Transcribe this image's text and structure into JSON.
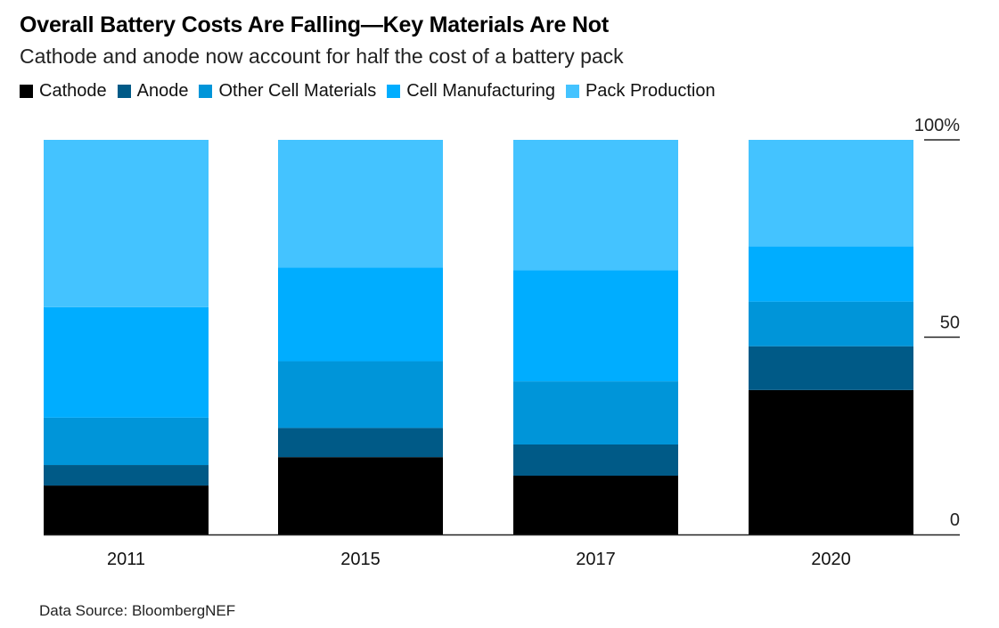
{
  "chart_data": {
    "type": "bar",
    "stacked": true,
    "title": "Overall Battery Costs Are Falling—Key Materials Are Not",
    "subtitle": "Cathode and anode now account for half the cost of a battery pack",
    "xlabel": "",
    "ylabel": "",
    "ylim": [
      0,
      100
    ],
    "y_axis_position": "right",
    "y_ticks": [
      {
        "value": 0,
        "label": "0"
      },
      {
        "value": 50,
        "label": "50"
      },
      {
        "value": 100,
        "label": "100%"
      }
    ],
    "grid": false,
    "legend_position": "top",
    "categories": [
      "2011",
      "2015",
      "2017",
      "2020"
    ],
    "series": [
      {
        "name": "Cathode",
        "color": "#000000",
        "values": [
          12.4,
          19.6,
          14.9,
          36.6
        ]
      },
      {
        "name": "Anode",
        "color": "#005a87",
        "values": [
          5.2,
          7.4,
          7.9,
          11.1
        ]
      },
      {
        "name": "Other Cell Materials",
        "color": "#0095d9",
        "values": [
          12.0,
          16.9,
          16.0,
          11.3
        ]
      },
      {
        "name": "Cell Manufacturing",
        "color": "#00adff",
        "values": [
          28.0,
          23.7,
          28.2,
          14.0
        ]
      },
      {
        "name": "Pack Production",
        "color": "#44c3ff",
        "values": [
          42.4,
          32.4,
          33.0,
          27.0
        ]
      }
    ],
    "source": "Data Source: BloombergNEF"
  }
}
